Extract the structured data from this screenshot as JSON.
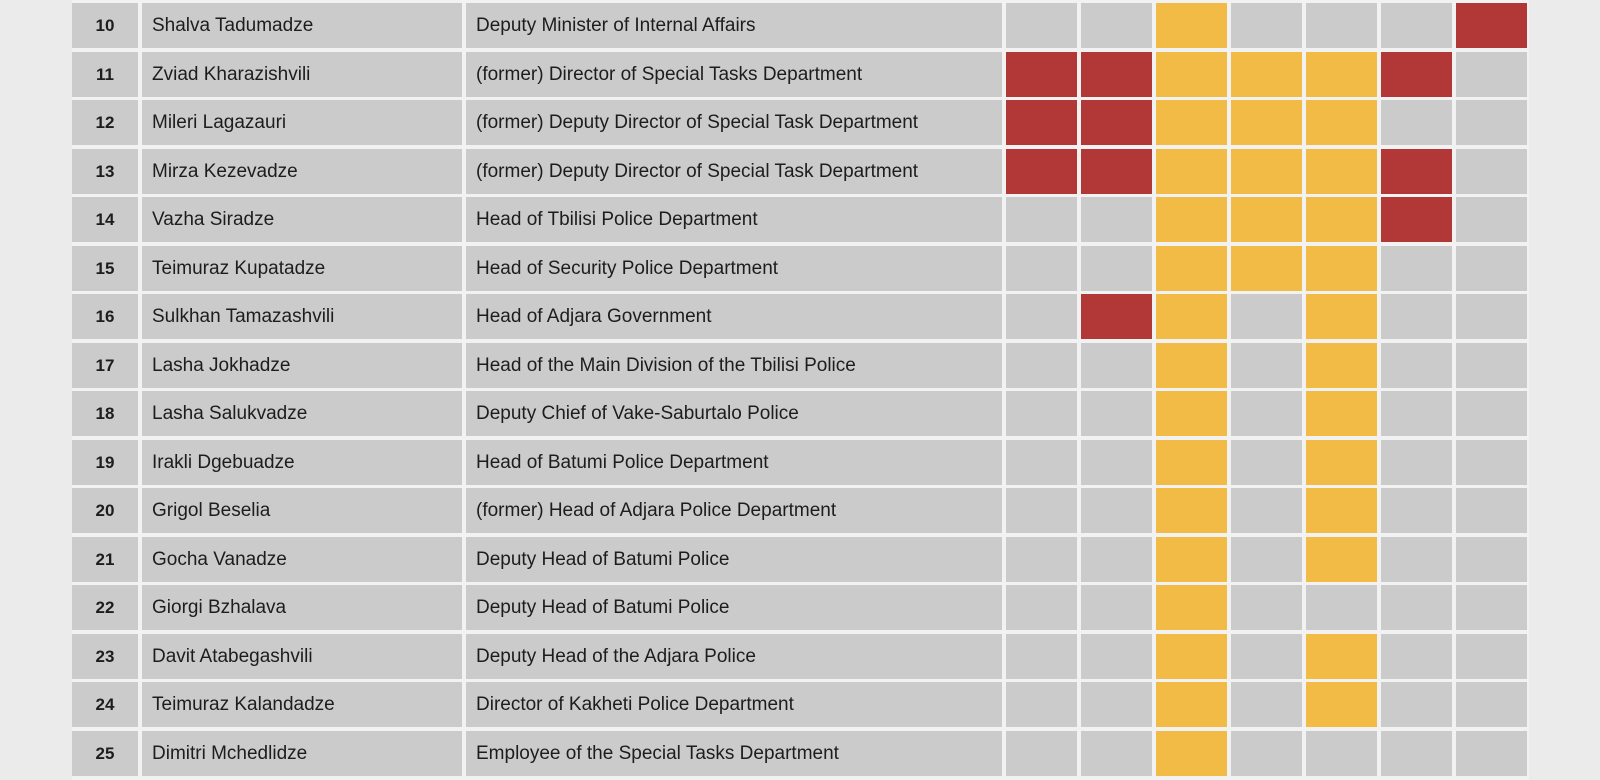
{
  "colors": {
    "red": "#b23737",
    "yellow": "#f2bb45",
    "empty": "#cbcbcb"
  },
  "rows": [
    {
      "num": "10",
      "name": "Shalva Tadumadze",
      "position": "Deputy Minister of Internal Affairs",
      "marks": [
        "",
        "",
        "yellow",
        "",
        "",
        "",
        "red"
      ]
    },
    {
      "num": "11",
      "name": "Zviad Kharazishvili",
      "position": "(former) Director of Special Tasks Department",
      "marks": [
        "red",
        "red",
        "yellow",
        "yellow",
        "yellow",
        "red",
        ""
      ]
    },
    {
      "num": "12",
      "name": "Mileri Lagazauri",
      "position": "(former) Deputy Director of Special Task Department",
      "marks": [
        "red",
        "red",
        "yellow",
        "yellow",
        "yellow",
        "",
        ""
      ]
    },
    {
      "num": "13",
      "name": "Mirza Kezevadze",
      "position": "(former) Deputy Director of Special Task Department",
      "marks": [
        "red",
        "red",
        "yellow",
        "yellow",
        "yellow",
        "red",
        ""
      ]
    },
    {
      "num": "14",
      "name": "Vazha Siradze",
      "position": "Head of Tbilisi Police Department",
      "marks": [
        "",
        "",
        "yellow",
        "yellow",
        "yellow",
        "red",
        ""
      ]
    },
    {
      "num": "15",
      "name": "Teimuraz Kupatadze",
      "position": "Head of Security Police Department",
      "marks": [
        "",
        "",
        "yellow",
        "yellow",
        "yellow",
        "",
        ""
      ]
    },
    {
      "num": "16",
      "name": "Sulkhan Tamazashvili",
      "position": "Head of Adjara Government",
      "marks": [
        "",
        "red",
        "yellow",
        "",
        "yellow",
        "",
        ""
      ]
    },
    {
      "num": "17",
      "name": "Lasha Jokhadze",
      "position": "Head of the Main Division of the Tbilisi Police",
      "marks": [
        "",
        "",
        "yellow",
        "",
        "yellow",
        "",
        ""
      ]
    },
    {
      "num": "18",
      "name": "Lasha Salukvadze",
      "position": "Deputy Chief of Vake-Saburtalo Police",
      "marks": [
        "",
        "",
        "yellow",
        "",
        "yellow",
        "",
        ""
      ]
    },
    {
      "num": "19",
      "name": "Irakli Dgebuadze",
      "position": "Head of Batumi Police Department",
      "marks": [
        "",
        "",
        "yellow",
        "",
        "yellow",
        "",
        ""
      ]
    },
    {
      "num": "20",
      "name": "Grigol Beselia",
      "position": "(former) Head of Adjara Police Department",
      "marks": [
        "",
        "",
        "yellow",
        "",
        "yellow",
        "",
        ""
      ]
    },
    {
      "num": "21",
      "name": "Gocha Vanadze",
      "position": "Deputy Head of Batumi Police",
      "marks": [
        "",
        "",
        "yellow",
        "",
        "yellow",
        "",
        ""
      ]
    },
    {
      "num": "22",
      "name": "Giorgi Bzhalava",
      "position": "Deputy Head of Batumi Police",
      "marks": [
        "",
        "",
        "yellow",
        "",
        "",
        "",
        ""
      ]
    },
    {
      "num": "23",
      "name": "Davit Atabegashvili",
      "position": "Deputy Head of the Adjara Police",
      "marks": [
        "",
        "",
        "yellow",
        "",
        "yellow",
        "",
        ""
      ]
    },
    {
      "num": "24",
      "name": "Teimuraz Kalandadze",
      "position": "Director of Kakheti Police Department",
      "marks": [
        "",
        "",
        "yellow",
        "",
        "yellow",
        "",
        ""
      ]
    },
    {
      "num": "25",
      "name": "Dimitri Mchedlidze",
      "position": "Employee of the Special Tasks Department",
      "marks": [
        "",
        "",
        "yellow",
        "",
        "",
        "",
        ""
      ]
    }
  ]
}
